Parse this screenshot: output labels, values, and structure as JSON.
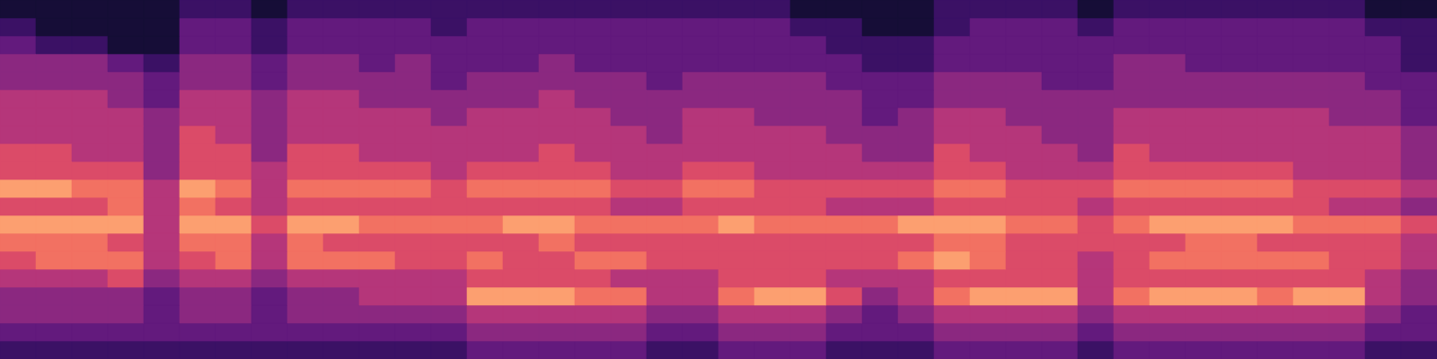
{
  "chart_data": {
    "type": "heatmap",
    "tick_labels": false,
    "zlim": [
      0,
      10
    ],
    "cells": [
      [
        1,
        1,
        1,
        1,
        1,
        2,
        2,
        1,
        2,
        2,
        2,
        2,
        2,
        2,
        2,
        2,
        2,
        2,
        2,
        2,
        2,
        2,
        1,
        1,
        1,
        1,
        2,
        2,
        2,
        2,
        1,
        2,
        2,
        2,
        2,
        2,
        2,
        2,
        1,
        1
      ],
      [
        2,
        1,
        1,
        1,
        1,
        3,
        3,
        2,
        3,
        3,
        3,
        3,
        2,
        3,
        3,
        3,
        3,
        3,
        3,
        3,
        3,
        3,
        2,
        2,
        1,
        1,
        2,
        3,
        3,
        3,
        2,
        3,
        3,
        3,
        3,
        3,
        3,
        3,
        2,
        2
      ],
      [
        3,
        2,
        2,
        1,
        1,
        3,
        3,
        2,
        3,
        3,
        3,
        3,
        3,
        3,
        3,
        3,
        3,
        3,
        3,
        3,
        3,
        3,
        3,
        2,
        2,
        2,
        3,
        3,
        3,
        3,
        3,
        3,
        3,
        3,
        3,
        3,
        3,
        3,
        3,
        2
      ],
      [
        4,
        4,
        4,
        3,
        2,
        4,
        4,
        3,
        4,
        4,
        3,
        4,
        3,
        3,
        3,
        4,
        3,
        3,
        3,
        3,
        3,
        3,
        3,
        3,
        2,
        2,
        3,
        3,
        3,
        3,
        3,
        4,
        4,
        3,
        3,
        3,
        3,
        3,
        3,
        2
      ],
      [
        4,
        4,
        4,
        4,
        3,
        4,
        4,
        3,
        4,
        4,
        4,
        4,
        3,
        4,
        4,
        4,
        4,
        4,
        3,
        4,
        4,
        4,
        4,
        3,
        3,
        3,
        4,
        4,
        4,
        3,
        3,
        4,
        4,
        4,
        4,
        4,
        4,
        4,
        3,
        3
      ],
      [
        5,
        5,
        5,
        4,
        3,
        5,
        5,
        4,
        5,
        5,
        4,
        4,
        4,
        4,
        4,
        5,
        4,
        4,
        4,
        4,
        4,
        4,
        4,
        4,
        3,
        3,
        4,
        4,
        4,
        4,
        4,
        4,
        4,
        4,
        4,
        4,
        4,
        4,
        4,
        3
      ],
      [
        5,
        5,
        5,
        5,
        4,
        5,
        5,
        4,
        5,
        5,
        5,
        5,
        4,
        5,
        5,
        5,
        5,
        4,
        4,
        5,
        5,
        4,
        4,
        4,
        3,
        4,
        5,
        5,
        4,
        4,
        4,
        5,
        5,
        5,
        5,
        5,
        5,
        4,
        4,
        3
      ],
      [
        5,
        5,
        5,
        5,
        4,
        6,
        5,
        4,
        5,
        5,
        5,
        5,
        5,
        5,
        5,
        5,
        5,
        5,
        4,
        5,
        5,
        5,
        5,
        4,
        4,
        4,
        5,
        5,
        5,
        4,
        4,
        5,
        5,
        5,
        5,
        5,
        5,
        5,
        5,
        4
      ],
      [
        6,
        6,
        5,
        5,
        4,
        6,
        6,
        4,
        6,
        6,
        5,
        5,
        5,
        5,
        5,
        6,
        5,
        5,
        5,
        5,
        5,
        5,
        5,
        5,
        4,
        4,
        6,
        5,
        5,
        5,
        4,
        6,
        5,
        5,
        5,
        5,
        5,
        5,
        5,
        4
      ],
      [
        6,
        6,
        6,
        6,
        4,
        6,
        6,
        5,
        6,
        6,
        6,
        6,
        5,
        6,
        6,
        6,
        6,
        5,
        5,
        6,
        6,
        5,
        5,
        5,
        5,
        5,
        6,
        6,
        5,
        5,
        5,
        6,
        6,
        6,
        6,
        6,
        5,
        5,
        5,
        4
      ],
      [
        8,
        8,
        7,
        7,
        5,
        8,
        7,
        5,
        7,
        7,
        7,
        7,
        6,
        7,
        7,
        7,
        7,
        6,
        6,
        7,
        7,
        6,
        6,
        6,
        6,
        6,
        7,
        7,
        6,
        6,
        6,
        7,
        7,
        7,
        7,
        7,
        6,
        6,
        6,
        5
      ],
      [
        6,
        6,
        6,
        7,
        5,
        7,
        6,
        5,
        6,
        6,
        6,
        6,
        6,
        6,
        6,
        6,
        6,
        5,
        5,
        6,
        6,
        6,
        6,
        5,
        5,
        5,
        6,
        6,
        6,
        6,
        5,
        6,
        6,
        6,
        6,
        6,
        6,
        5,
        5,
        4
      ],
      [
        8,
        8,
        8,
        8,
        5,
        8,
        8,
        6,
        8,
        8,
        7,
        7,
        7,
        7,
        8,
        8,
        7,
        7,
        7,
        7,
        8,
        7,
        7,
        7,
        7,
        8,
        8,
        8,
        7,
        7,
        6,
        7,
        8,
        8,
        8,
        8,
        7,
        7,
        7,
        6
      ],
      [
        7,
        7,
        7,
        6,
        5,
        7,
        7,
        5,
        7,
        6,
        6,
        6,
        6,
        6,
        6,
        7,
        6,
        6,
        6,
        6,
        6,
        6,
        6,
        6,
        6,
        6,
        7,
        7,
        6,
        6,
        6,
        6,
        6,
        7,
        7,
        6,
        6,
        6,
        6,
        5
      ],
      [
        6,
        7,
        7,
        7,
        5,
        6,
        7,
        5,
        7,
        7,
        7,
        6,
        6,
        7,
        6,
        6,
        7,
        7,
        6,
        6,
        6,
        6,
        6,
        6,
        6,
        7,
        8,
        7,
        6,
        6,
        5,
        6,
        7,
        7,
        7,
        7,
        7,
        6,
        6,
        5
      ],
      [
        5,
        5,
        5,
        6,
        4,
        5,
        5,
        4,
        5,
        5,
        5,
        5,
        5,
        6,
        6,
        6,
        6,
        5,
        5,
        5,
        6,
        6,
        6,
        5,
        5,
        5,
        6,
        6,
        6,
        6,
        5,
        6,
        6,
        6,
        6,
        6,
        6,
        6,
        5,
        4
      ],
      [
        4,
        4,
        4,
        4,
        3,
        4,
        4,
        3,
        4,
        4,
        5,
        5,
        5,
        8,
        8,
        8,
        7,
        7,
        5,
        5,
        7,
        8,
        8,
        6,
        4,
        5,
        7,
        8,
        8,
        8,
        5,
        7,
        8,
        8,
        8,
        7,
        8,
        8,
        5,
        4
      ],
      [
        4,
        4,
        4,
        4,
        3,
        4,
        4,
        3,
        4,
        4,
        4,
        4,
        4,
        5,
        5,
        5,
        5,
        5,
        4,
        4,
        5,
        5,
        5,
        4,
        3,
        4,
        5,
        5,
        5,
        5,
        4,
        5,
        5,
        5,
        5,
        5,
        5,
        5,
        4,
        3
      ],
      [
        3,
        3,
        3,
        3,
        3,
        3,
        3,
        3,
        3,
        3,
        3,
        3,
        3,
        4,
        4,
        4,
        4,
        4,
        3,
        3,
        4,
        4,
        4,
        3,
        3,
        3,
        4,
        4,
        4,
        4,
        3,
        4,
        4,
        4,
        4,
        4,
        4,
        4,
        3,
        3
      ],
      [
        2,
        2,
        2,
        2,
        2,
        2,
        2,
        2,
        2,
        2,
        2,
        2,
        2,
        3,
        3,
        3,
        3,
        3,
        2,
        2,
        3,
        3,
        3,
        2,
        2,
        2,
        3,
        3,
        3,
        3,
        2,
        3,
        3,
        3,
        3,
        3,
        3,
        3,
        2,
        2
      ]
    ]
  }
}
